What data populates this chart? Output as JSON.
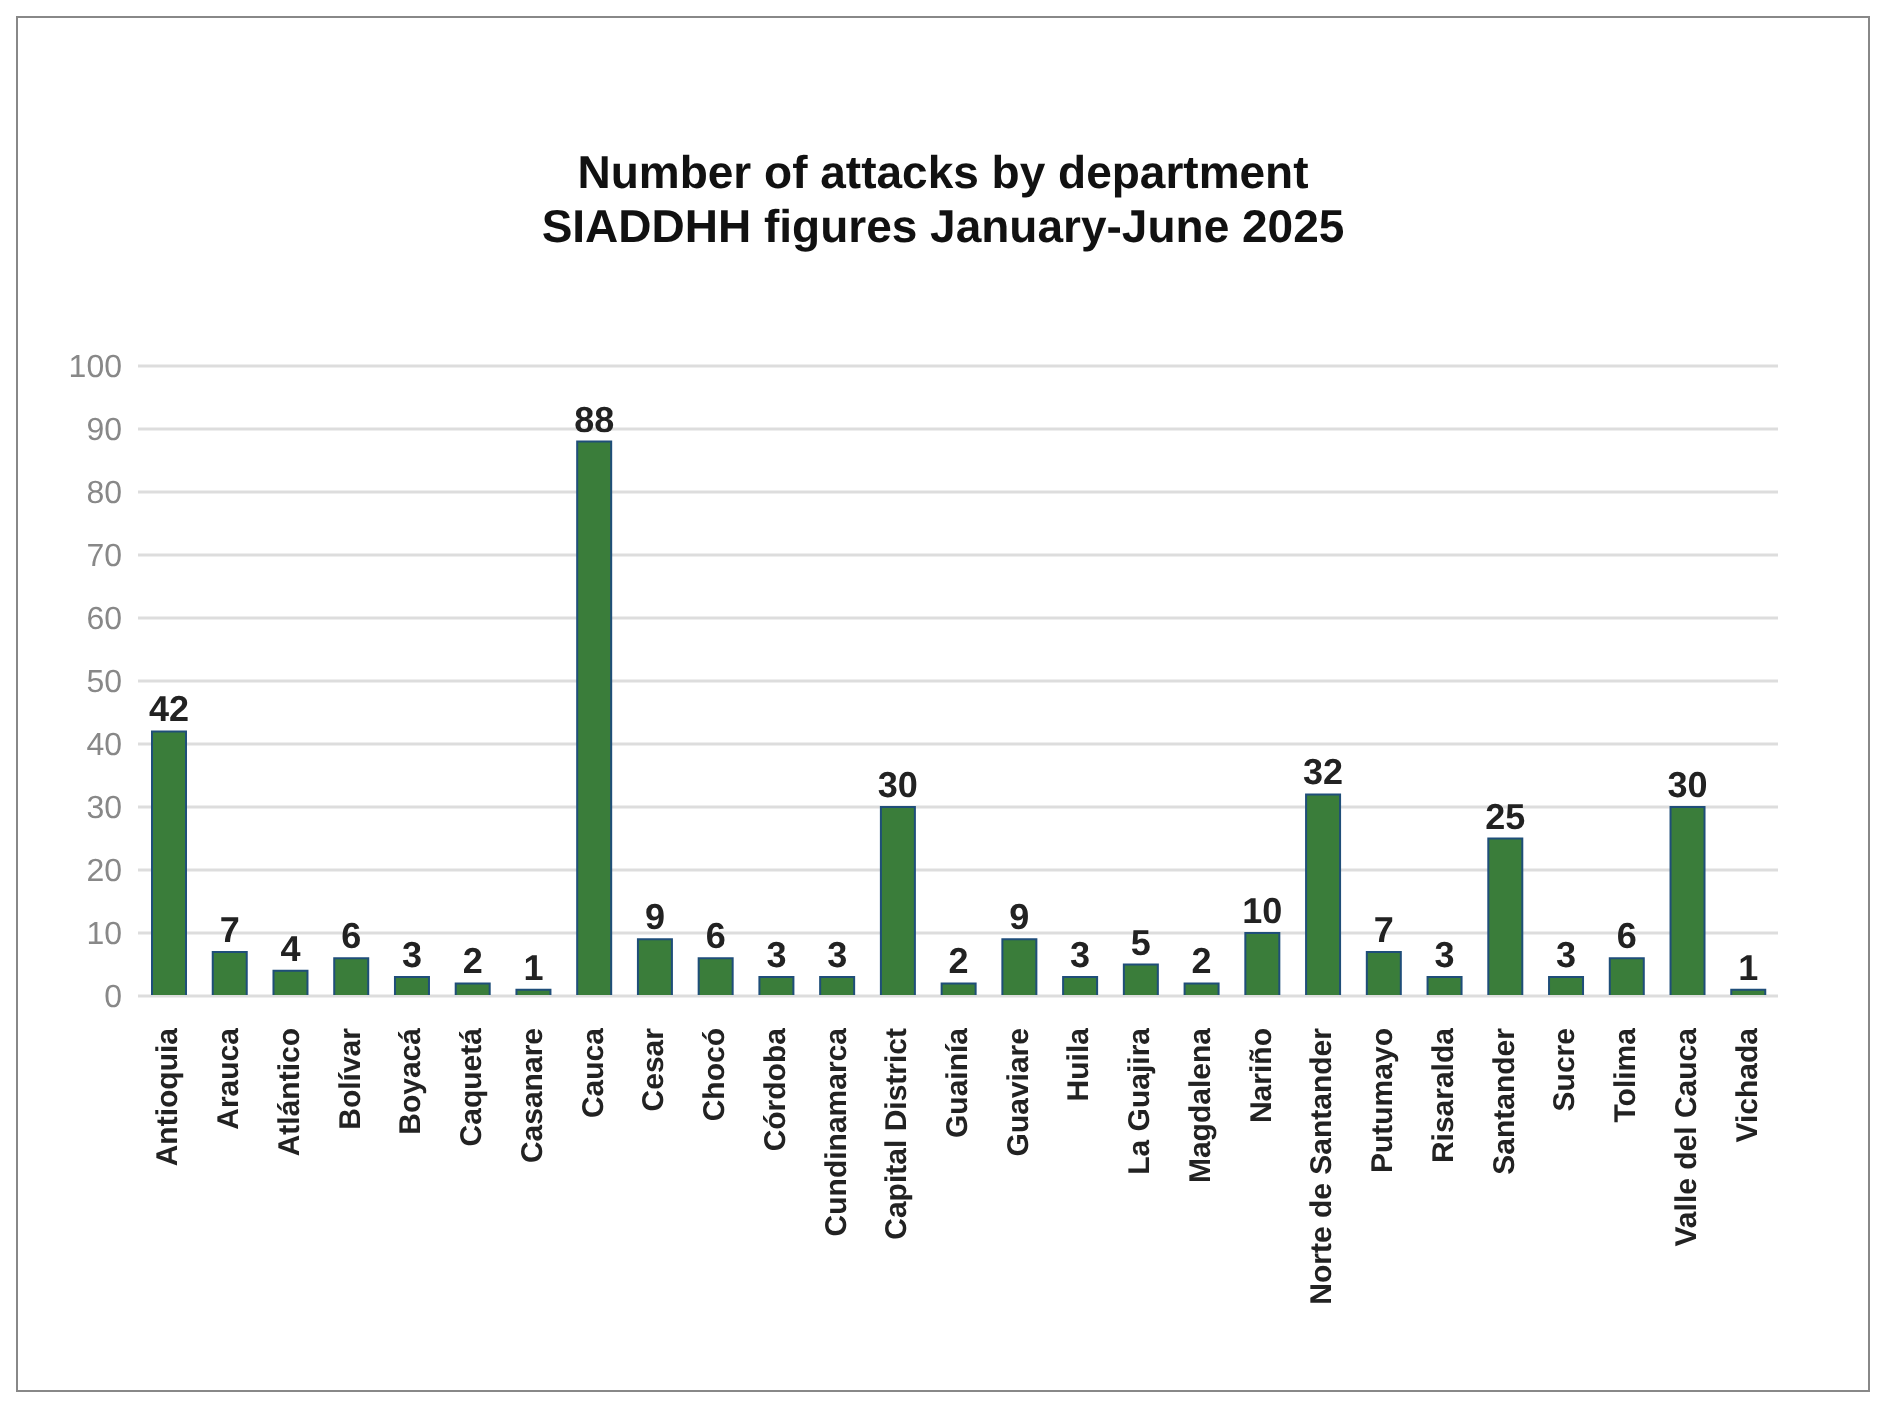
{
  "chart_data": {
    "type": "bar",
    "title": "Number of attacks by department\nSIADDHH figures January-June 2025",
    "categories": [
      "Antioquia",
      "Arauca",
      "Atlántico",
      "Bolívar",
      "Boyacá",
      "Caquetá",
      "Casanare",
      "Cauca",
      "Cesar",
      "Chocó",
      "Córdoba",
      "Cundinamarca",
      "Capital District",
      "Guainía",
      "Guaviare",
      "Huila",
      "La Guajira",
      "Magdalena",
      "Nariño",
      "Norte de Santander",
      "Putumayo",
      "Risaralda",
      "Santander",
      "Sucre",
      "Tolima",
      "Valle del Cauca",
      "Vichada"
    ],
    "values": [
      42,
      7,
      4,
      6,
      3,
      2,
      1,
      88,
      9,
      6,
      3,
      3,
      30,
      2,
      9,
      3,
      5,
      2,
      10,
      32,
      7,
      3,
      25,
      3,
      6,
      30,
      1
    ],
    "data_labels": true,
    "color": "#3a7d3a",
    "ylim": [
      0,
      100
    ],
    "yticks": [
      0,
      10,
      20,
      30,
      40,
      50,
      60,
      70,
      80,
      90,
      100
    ],
    "grid": "y",
    "legend": false
  }
}
